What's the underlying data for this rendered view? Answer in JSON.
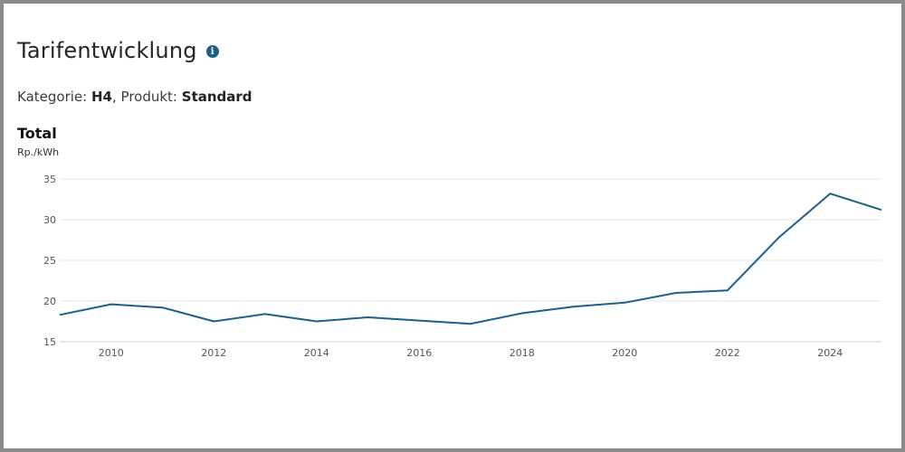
{
  "header": {
    "title": "Tarifentwicklung",
    "info_icon": "info-icon",
    "kategorie_label": "Kategorie:",
    "kategorie_value": "H4",
    "produkt_label": "Produkt:",
    "produkt_value": "Standard"
  },
  "chart_data": {
    "type": "line",
    "title": "Total",
    "ylabel": "Rp./kWh",
    "xlabel": "",
    "x": [
      2009,
      2010,
      2011,
      2012,
      2013,
      2014,
      2015,
      2016,
      2017,
      2018,
      2019,
      2020,
      2021,
      2022,
      2023,
      2024,
      2025
    ],
    "series": [
      {
        "values": [
          18.3,
          19.6,
          19.2,
          17.5,
          18.4,
          17.5,
          18.0,
          17.6,
          17.2,
          18.5,
          19.3,
          19.8,
          21.0,
          21.3,
          27.8,
          33.2,
          31.2
        ]
      }
    ],
    "xlim": [
      2009,
      2025
    ],
    "ylim": [
      15,
      35
    ],
    "xticks": [
      "2010",
      "2012",
      "2014",
      "2016",
      "2018",
      "2020",
      "2022",
      "2024"
    ],
    "yticks": [
      "15",
      "20",
      "25",
      "30",
      "35"
    ],
    "grid": true,
    "line_color": "#1d5f86",
    "grid_color": "#e6e6e6"
  }
}
